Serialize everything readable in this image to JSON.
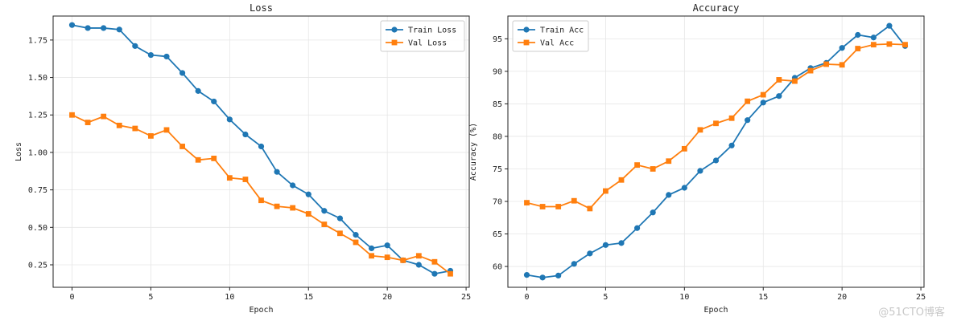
{
  "chart_data": [
    {
      "type": "line",
      "title": "Loss",
      "xlabel": "Epoch",
      "ylabel": "Loss",
      "xlim": [
        -1.2,
        25.2
      ],
      "ylim": [
        0.1,
        1.91
      ],
      "xticks": [
        0,
        5,
        10,
        15,
        20,
        25
      ],
      "yticks": [
        0.25,
        0.5,
        0.75,
        1.0,
        1.25,
        1.5,
        1.75
      ],
      "ytick_labels": [
        "0.25",
        "0.50",
        "0.75",
        "1.00",
        "1.25",
        "1.50",
        "1.75"
      ],
      "grid": true,
      "legend_position": "top-right",
      "x": [
        0,
        1,
        2,
        3,
        4,
        5,
        6,
        7,
        8,
        9,
        10,
        11,
        12,
        13,
        14,
        15,
        16,
        17,
        18,
        19,
        20,
        21,
        22,
        23,
        24
      ],
      "series": [
        {
          "name": "Train Loss",
          "color": "#1f77b4",
          "marker": "circle",
          "values": [
            1.85,
            1.83,
            1.83,
            1.82,
            1.71,
            1.65,
            1.64,
            1.53,
            1.41,
            1.34,
            1.22,
            1.12,
            1.04,
            0.87,
            0.78,
            0.72,
            0.61,
            0.56,
            0.45,
            0.36,
            0.38,
            0.28,
            0.25,
            0.19,
            0.21
          ]
        },
        {
          "name": "Val Loss",
          "color": "#ff7f0e",
          "marker": "square",
          "values": [
            1.25,
            1.2,
            1.24,
            1.18,
            1.16,
            1.11,
            1.15,
            1.04,
            0.95,
            0.96,
            0.83,
            0.82,
            0.68,
            0.64,
            0.63,
            0.59,
            0.52,
            0.46,
            0.4,
            0.31,
            0.3,
            0.28,
            0.31,
            0.27,
            0.19
          ]
        }
      ]
    },
    {
      "type": "line",
      "title": "Accuracy",
      "xlabel": "Epoch",
      "ylabel": "Accuracy (%)",
      "xlim": [
        -1.2,
        25.2
      ],
      "ylim": [
        56.8,
        98.5
      ],
      "xticks": [
        0,
        5,
        10,
        15,
        20,
        25
      ],
      "yticks": [
        60,
        65,
        70,
        75,
        80,
        85,
        90,
        95
      ],
      "ytick_labels": [
        "60",
        "65",
        "70",
        "75",
        "80",
        "85",
        "90",
        "95"
      ],
      "grid": true,
      "legend_position": "top-left",
      "x": [
        0,
        1,
        2,
        3,
        4,
        5,
        6,
        7,
        8,
        9,
        10,
        11,
        12,
        13,
        14,
        15,
        16,
        17,
        18,
        19,
        20,
        21,
        22,
        23,
        24
      ],
      "series": [
        {
          "name": "Train Acc",
          "color": "#1f77b4",
          "marker": "circle",
          "values": [
            58.7,
            58.3,
            58.6,
            60.4,
            62.0,
            63.3,
            63.6,
            65.9,
            68.3,
            71.0,
            72.1,
            74.7,
            76.3,
            78.6,
            82.5,
            85.2,
            86.2,
            89.0,
            90.5,
            91.3,
            93.6,
            95.6,
            95.2,
            97.0,
            93.9
          ]
        },
        {
          "name": "Val Acc",
          "color": "#ff7f0e",
          "marker": "square",
          "values": [
            69.8,
            69.2,
            69.2,
            70.1,
            68.9,
            71.6,
            73.3,
            75.6,
            75.0,
            76.2,
            78.1,
            81.0,
            82.0,
            82.8,
            85.4,
            86.4,
            88.7,
            88.5,
            90.1,
            91.1,
            91.0,
            93.5,
            94.1,
            94.2,
            94.1
          ]
        }
      ]
    }
  ],
  "watermark": "@51CTO博客"
}
